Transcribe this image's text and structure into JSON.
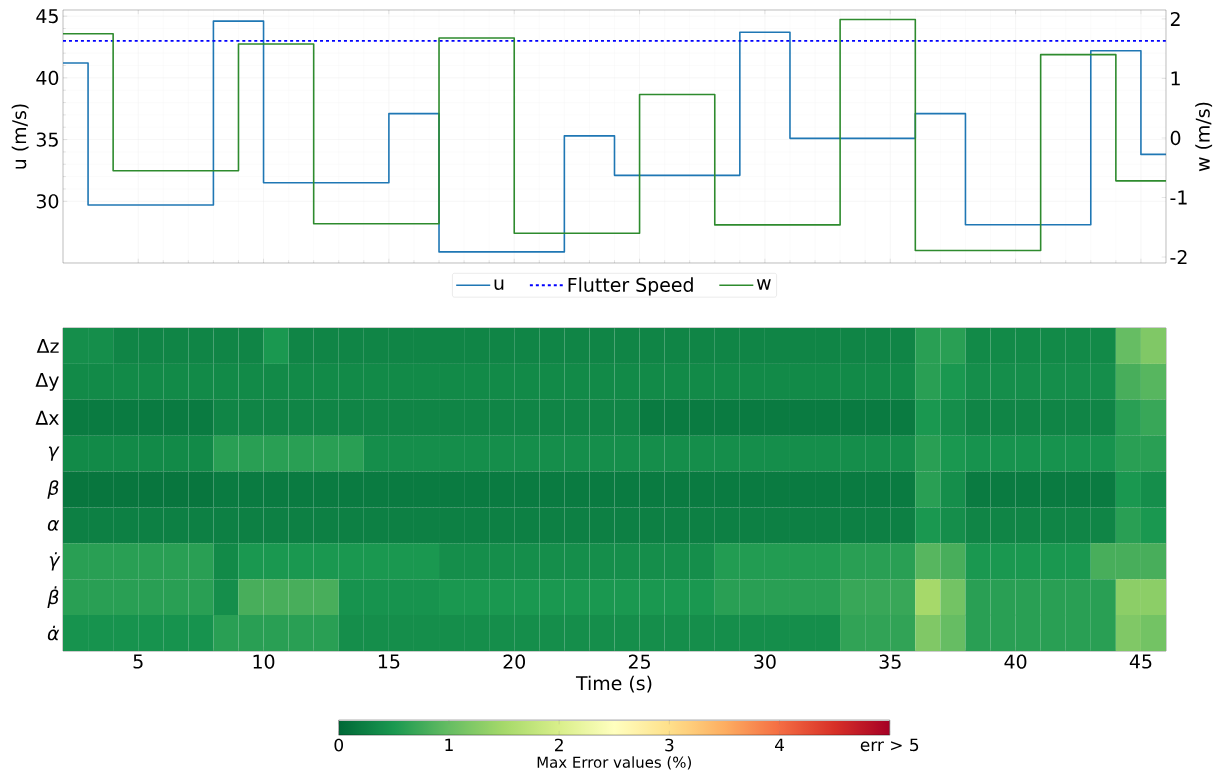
{
  "chart_data": [
    {
      "type": "step",
      "ylabel": "u (m/s)",
      "y2label": "w (m/s)",
      "series": [
        {
          "name": "u",
          "color": "#1f77b4",
          "x": [
            2,
            3,
            8,
            10,
            15,
            17,
            22,
            24,
            29,
            31,
            36,
            38,
            43,
            45,
            46
          ],
          "values": [
            41.2,
            29.7,
            44.6,
            31.5,
            37.1,
            25.9,
            35.3,
            32.1,
            43.7,
            35.1,
            37.1,
            28.1,
            42.2,
            33.8,
            33.8
          ]
        },
        {
          "name": "w",
          "color": "#2e8b2e",
          "axis": "y2",
          "x": [
            2,
            4,
            9,
            12,
            17,
            20,
            25,
            28,
            33,
            36,
            41,
            44,
            46
          ],
          "values": [
            1.75,
            -0.55,
            1.58,
            -1.44,
            1.68,
            -1.6,
            0.73,
            -1.46,
            1.99,
            -1.89,
            1.4,
            -0.72,
            -0.72
          ]
        }
      ],
      "ref_lines": [
        {
          "axis": "y",
          "value": 43.0,
          "label": "Flutter Speed",
          "color": "#0000ff",
          "line_style": "dashed"
        }
      ],
      "xlim": [
        2,
        46
      ],
      "xticks": [
        5,
        10,
        15,
        20,
        25,
        30,
        35,
        40,
        45
      ],
      "ylim": [
        25,
        45.5
      ],
      "yticks": [
        30,
        35,
        40,
        45
      ],
      "y2lim": [
        -2.1,
        2.15
      ],
      "y2ticks": [
        -2,
        -1,
        0,
        1,
        2
      ],
      "grid": true,
      "legend": "bottom",
      "tick_labels": "y"
    },
    {
      "type": "heatmap",
      "xlabel": "Time (s)",
      "clabel": "Max Error values (%)",
      "x": [
        2.5,
        3.5,
        4.5,
        5.5,
        6.5,
        7.5,
        8.5,
        9.5,
        10.5,
        11.5,
        12.5,
        13.5,
        14.5,
        15.5,
        16.5,
        17.5,
        18.5,
        19.5,
        20.5,
        21.5,
        22.5,
        23.5,
        24.5,
        25.5,
        26.5,
        27.5,
        28.5,
        29.5,
        30.5,
        31.5,
        32.5,
        33.5,
        34.5,
        35.5,
        36.5,
        37.5,
        38.5,
        39.5,
        40.5,
        41.5,
        42.5,
        43.5,
        44.5,
        45.5
      ],
      "y_categories": [
        "Δz",
        "Δy",
        "Δx",
        "*γ*",
        "*β*",
        "*α*",
        "*γ̇*",
        "*β̇*",
        "*α̇*"
      ],
      "cells": [
        [
          0.4,
          0.4,
          0.3,
          0.3,
          0.3,
          0.3,
          0.3,
          0.3,
          0.5,
          0.3,
          0.3,
          0.3,
          0.3,
          0.3,
          0.3,
          0.3,
          0.3,
          0.3,
          0.3,
          0.3,
          0.3,
          0.3,
          0.3,
          0.3,
          0.3,
          0.3,
          0.3,
          0.3,
          0.3,
          0.3,
          0.3,
          0.3,
          0.3,
          0.3,
          0.6,
          0.6,
          0.35,
          0.35,
          0.35,
          0.35,
          0.35,
          0.35,
          1.0,
          1.2
        ],
        [
          0.35,
          0.35,
          0.35,
          0.35,
          0.35,
          0.35,
          0.35,
          0.35,
          0.35,
          0.35,
          0.35,
          0.35,
          0.35,
          0.35,
          0.35,
          0.35,
          0.35,
          0.35,
          0.35,
          0.35,
          0.35,
          0.35,
          0.35,
          0.35,
          0.35,
          0.35,
          0.35,
          0.35,
          0.35,
          0.35,
          0.35,
          0.35,
          0.35,
          0.35,
          0.6,
          0.5,
          0.4,
          0.4,
          0.4,
          0.4,
          0.4,
          0.4,
          0.8,
          0.9
        ],
        [
          0.2,
          0.2,
          0.2,
          0.2,
          0.2,
          0.2,
          0.3,
          0.3,
          0.3,
          0.3,
          0.3,
          0.3,
          0.3,
          0.3,
          0.3,
          0.3,
          0.3,
          0.3,
          0.3,
          0.3,
          0.3,
          0.3,
          0.3,
          0.2,
          0.2,
          0.2,
          0.2,
          0.2,
          0.2,
          0.2,
          0.2,
          0.2,
          0.2,
          0.2,
          0.5,
          0.4,
          0.3,
          0.3,
          0.3,
          0.3,
          0.3,
          0.3,
          0.6,
          0.7
        ],
        [
          0.35,
          0.35,
          0.35,
          0.35,
          0.35,
          0.35,
          0.6,
          0.6,
          0.6,
          0.6,
          0.6,
          0.6,
          0.4,
          0.4,
          0.4,
          0.4,
          0.4,
          0.4,
          0.4,
          0.4,
          0.4,
          0.4,
          0.4,
          0.4,
          0.4,
          0.4,
          0.4,
          0.4,
          0.4,
          0.4,
          0.4,
          0.4,
          0.4,
          0.4,
          0.6,
          0.5,
          0.45,
          0.45,
          0.45,
          0.45,
          0.45,
          0.45,
          0.6,
          0.6
        ],
        [
          0.15,
          0.15,
          0.15,
          0.15,
          0.15,
          0.15,
          0.2,
          0.2,
          0.2,
          0.2,
          0.2,
          0.2,
          0.2,
          0.2,
          0.2,
          0.2,
          0.2,
          0.2,
          0.2,
          0.2,
          0.2,
          0.2,
          0.2,
          0.2,
          0.2,
          0.2,
          0.2,
          0.2,
          0.2,
          0.2,
          0.2,
          0.2,
          0.2,
          0.2,
          0.6,
          0.4,
          0.2,
          0.2,
          0.2,
          0.2,
          0.2,
          0.2,
          0.5,
          0.4
        ],
        [
          0.25,
          0.25,
          0.25,
          0.25,
          0.25,
          0.25,
          0.25,
          0.25,
          0.25,
          0.25,
          0.25,
          0.25,
          0.25,
          0.25,
          0.25,
          0.25,
          0.25,
          0.25,
          0.25,
          0.25,
          0.25,
          0.25,
          0.25,
          0.25,
          0.25,
          0.25,
          0.25,
          0.25,
          0.25,
          0.25,
          0.25,
          0.25,
          0.25,
          0.25,
          0.5,
          0.4,
          0.3,
          0.3,
          0.3,
          0.3,
          0.3,
          0.3,
          0.6,
          0.5
        ],
        [
          0.6,
          0.6,
          0.6,
          0.6,
          0.6,
          0.6,
          0.35,
          0.5,
          0.5,
          0.5,
          0.5,
          0.5,
          0.5,
          0.5,
          0.5,
          0.4,
          0.4,
          0.4,
          0.4,
          0.4,
          0.4,
          0.4,
          0.4,
          0.4,
          0.4,
          0.4,
          0.55,
          0.55,
          0.55,
          0.55,
          0.55,
          0.6,
          0.6,
          0.6,
          0.9,
          0.8,
          0.5,
          0.5,
          0.5,
          0.5,
          0.5,
          0.8,
          0.8,
          0.8
        ],
        [
          0.6,
          0.6,
          0.6,
          0.6,
          0.6,
          0.6,
          0.4,
          0.8,
          0.8,
          0.8,
          0.8,
          0.45,
          0.45,
          0.45,
          0.45,
          0.5,
          0.5,
          0.5,
          0.5,
          0.5,
          0.5,
          0.5,
          0.5,
          0.5,
          0.5,
          0.5,
          0.6,
          0.6,
          0.6,
          0.6,
          0.6,
          0.7,
          0.7,
          0.7,
          1.5,
          1.1,
          0.6,
          0.6,
          0.6,
          0.6,
          0.6,
          0.6,
          1.3,
          1.3
        ],
        [
          0.45,
          0.45,
          0.45,
          0.45,
          0.45,
          0.45,
          0.6,
          0.6,
          0.6,
          0.6,
          0.6,
          0.4,
          0.4,
          0.4,
          0.4,
          0.4,
          0.4,
          0.4,
          0.4,
          0.4,
          0.4,
          0.4,
          0.4,
          0.4,
          0.4,
          0.4,
          0.4,
          0.4,
          0.4,
          0.4,
          0.4,
          0.65,
          0.65,
          0.65,
          1.2,
          1.0,
          0.6,
          0.6,
          0.6,
          0.6,
          0.6,
          0.6,
          1.2,
          1.1
        ]
      ],
      "xlim": [
        2,
        46
      ],
      "xticks": [
        5,
        10,
        15,
        20,
        25,
        30,
        35,
        40,
        45
      ],
      "clim": [
        0,
        5
      ],
      "cticks": [
        0,
        1,
        2,
        3,
        4,
        {
          "value": 5,
          "label": "err > 5"
        }
      ]
    }
  ]
}
